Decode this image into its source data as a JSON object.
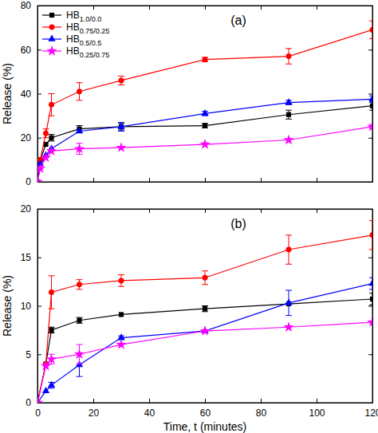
{
  "chart_data": [
    {
      "type": "line",
      "title": "(a)",
      "y_label": "Release (%)",
      "x": [
        0,
        1,
        3,
        5,
        15,
        30,
        60,
        90,
        120
      ],
      "xlim": [
        0,
        120
      ],
      "xticks": [
        0,
        20,
        40,
        60,
        80,
        100,
        120
      ],
      "ylim": [
        0,
        80
      ],
      "yticks": [
        0,
        20,
        40,
        60,
        80
      ],
      "legend": "upper left",
      "tick_labels": "y",
      "series": [
        {
          "name": "HB1.0/0.0",
          "color": "#000000",
          "marker": "square",
          "values": [
            0,
            10,
            17,
            20,
            24,
            25,
            25.5,
            30.5,
            34.5
          ],
          "errors": [
            null,
            null,
            null,
            1.5,
            1.5,
            1.5,
            1,
            2,
            2
          ]
        },
        {
          "name": "HB0.75/0.25",
          "color": "#ff0000",
          "marker": "circle",
          "values": [
            0,
            10,
            22,
            35,
            41,
            46,
            55.5,
            57,
            69
          ],
          "errors": [
            null,
            null,
            2,
            5,
            4,
            2,
            1,
            3.5,
            4
          ]
        },
        {
          "name": "HB0.5/0.5",
          "color": "#0000ff",
          "marker": "triangle",
          "values": [
            0,
            8,
            12,
            15,
            23,
            25,
            31,
            36,
            37.5
          ],
          "errors": [
            null,
            null,
            null,
            null,
            null,
            2,
            1,
            1,
            1.5
          ]
        },
        {
          "name": "HB0.25/0.75",
          "color": "#ff00ff",
          "marker": "star",
          "values": [
            0,
            6,
            11,
            14,
            15,
            15.5,
            17,
            19,
            25
          ],
          "errors": [
            null,
            null,
            null,
            null,
            2.5,
            null,
            null,
            null,
            1
          ]
        }
      ]
    },
    {
      "type": "line",
      "title": "(b)",
      "y_label": "Release (%)",
      "x_label": "Time, t (minutes)",
      "x": [
        0,
        3,
        5,
        15,
        30,
        60,
        90,
        120
      ],
      "xlim": [
        0,
        120
      ],
      "xticks": [
        0,
        20,
        40,
        60,
        80,
        100,
        120
      ],
      "ylim": [
        0,
        20
      ],
      "yticks": [
        0,
        5,
        10,
        15,
        20
      ],
      "series": [
        {
          "color": "#000000",
          "marker": "square",
          "values": [
            0,
            4,
            7.5,
            8.5,
            9.1,
            9.7,
            10.2,
            10.7
          ],
          "errors": [
            null,
            null,
            0.3,
            0.3,
            null,
            0.3,
            null,
            0.6
          ]
        },
        {
          "color": "#ff0000",
          "marker": "circle",
          "values": [
            0,
            4,
            11.4,
            12.2,
            12.6,
            12.9,
            15.8,
            17.3
          ],
          "errors": [
            null,
            null,
            1.7,
            0.5,
            0.6,
            0.7,
            1.5,
            1.5
          ]
        },
        {
          "color": "#0000ff",
          "marker": "triangle",
          "values": [
            0,
            1.2,
            1.8,
            3.9,
            6.7,
            7.4,
            10.3,
            12.3
          ],
          "errors": [
            null,
            null,
            0.3,
            1.2,
            0.2,
            null,
            1.3,
            0.6
          ]
        },
        {
          "color": "#ff00ff",
          "marker": "star",
          "values": [
            0,
            3.8,
            4.5,
            5,
            6,
            7.4,
            7.8,
            8.3
          ],
          "errors": [
            null,
            null,
            0.5,
            1,
            null,
            null,
            null,
            null
          ]
        }
      ]
    }
  ]
}
